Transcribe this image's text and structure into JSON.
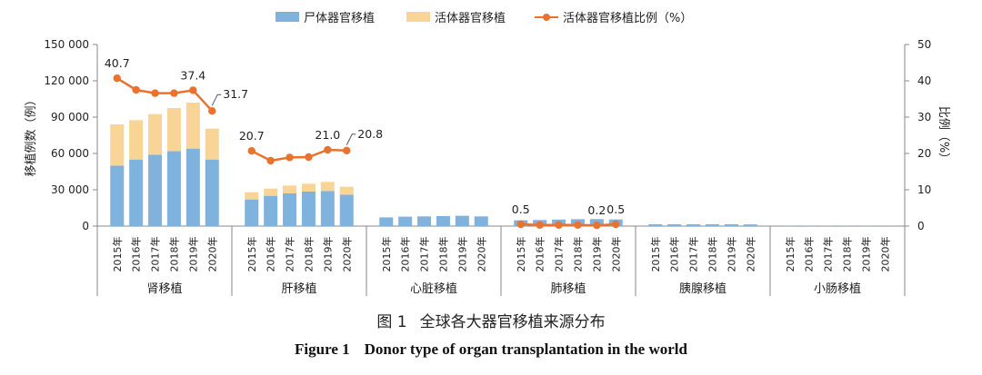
{
  "chart_data": {
    "type": "bar+line",
    "years": [
      "2015年",
      "2016年",
      "2017年",
      "2018年",
      "2019年",
      "2020年"
    ],
    "groups": [
      {
        "label": "肾移植",
        "deceased": [
          50000,
          55000,
          59000,
          62000,
          64000,
          55000
        ],
        "living": [
          34000,
          32500,
          33500,
          35500,
          38000,
          25500
        ],
        "ratio": [
          40.7,
          37.5,
          36.6,
          36.6,
          37.4,
          31.7
        ],
        "ratio_labels": [
          {
            "i": 0,
            "text": "40.7"
          },
          {
            "i": 4,
            "text": "37.4"
          },
          {
            "i": 5,
            "text": "31.7"
          }
        ]
      },
      {
        "label": "肝移植",
        "deceased": [
          22000,
          25000,
          27000,
          28500,
          29000,
          26000
        ],
        "living": [
          6000,
          6000,
          6500,
          6500,
          7500,
          6500
        ],
        "ratio": [
          20.7,
          18.0,
          18.9,
          19.0,
          21.0,
          20.8
        ],
        "ratio_labels": [
          {
            "i": 0,
            "text": "20.7"
          },
          {
            "i": 4,
            "text": "21.0"
          },
          {
            "i": 5,
            "text": "20.8"
          }
        ]
      },
      {
        "label": "心脏移植",
        "deceased": [
          7200,
          7800,
          8000,
          8300,
          8500,
          8000
        ],
        "living": [
          0,
          0,
          0,
          0,
          0,
          0
        ],
        "ratio": null,
        "ratio_labels": []
      },
      {
        "label": "肺移植",
        "deceased": [
          4800,
          5000,
          5400,
          5700,
          5800,
          5500
        ],
        "living": [
          0,
          0,
          0,
          0,
          0,
          0
        ],
        "ratio": [
          0.5,
          0.3,
          0.3,
          0.3,
          0.2,
          0.5
        ],
        "ratio_labels": [
          {
            "i": 0,
            "text": "0.5"
          },
          {
            "i": 4,
            "text": "0.2"
          },
          {
            "i": 5,
            "text": "0.5"
          }
        ]
      },
      {
        "label": "胰腺移植",
        "deceased": [
          1500,
          1500,
          1500,
          1500,
          1500,
          1400
        ],
        "living": [
          0,
          0,
          0,
          0,
          0,
          0
        ],
        "ratio": null,
        "ratio_labels": []
      },
      {
        "label": "小肠移植",
        "deceased": [
          150,
          150,
          150,
          150,
          150,
          100
        ],
        "living": [
          0,
          0,
          0,
          0,
          0,
          0
        ],
        "ratio": null,
        "ratio_labels": []
      }
    ],
    "y_left": {
      "label": "移植例数（例）",
      "min": 0,
      "max": 150000,
      "ticks": [
        {
          "v": 0,
          "t": "0"
        },
        {
          "v": 30000,
          "t": "30 000"
        },
        {
          "v": 60000,
          "t": "60 000"
        },
        {
          "v": 90000,
          "t": "90 000"
        },
        {
          "v": 120000,
          "t": "120 000"
        },
        {
          "v": 150000,
          "t": "150 000"
        }
      ]
    },
    "y_right": {
      "label": "比例（%）",
      "min": 0,
      "max": 50,
      "ticks": [
        {
          "v": 0,
          "t": "0"
        },
        {
          "v": 10,
          "t": "10"
        },
        {
          "v": 20,
          "t": "20"
        },
        {
          "v": 30,
          "t": "30"
        },
        {
          "v": 40,
          "t": "40"
        },
        {
          "v": 50,
          "t": "50"
        }
      ]
    },
    "legend": [
      {
        "key": "deceased",
        "label": "尸体器官移植",
        "color": "#7fb2dd"
      },
      {
        "key": "living",
        "label": "活体器官移植",
        "color": "#f8d596"
      },
      {
        "key": "ratio",
        "label": "活体器官移植比例（%）",
        "color": "#e9722e"
      }
    ],
    "legend_position": "top"
  },
  "caption": {
    "cn_num": "图 1",
    "cn_text": "全球各大器官移植来源分布",
    "en_num": "Figure 1",
    "en_text": "Donor type of organ transplantation in the world"
  }
}
